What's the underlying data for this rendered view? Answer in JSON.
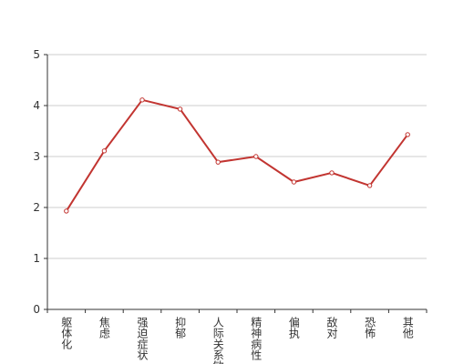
{
  "chart_data": {
    "type": "line",
    "categories": [
      "躯体化",
      "焦虑",
      "强迫症状",
      "抑郁",
      "人际关系敏感",
      "精神病性",
      "偏执",
      "敌对",
      "恐怖",
      "其他"
    ],
    "series": [
      {
        "name": null,
        "color": "#c23531",
        "values": [
          1.93,
          3.11,
          4.11,
          3.93,
          2.89,
          3.0,
          2.5,
          2.68,
          2.43,
          3.43
        ]
      }
    ],
    "ylim": [
      0,
      5
    ],
    "yticks": [
      0,
      1,
      2,
      3,
      4,
      5
    ],
    "grid": true
  }
}
